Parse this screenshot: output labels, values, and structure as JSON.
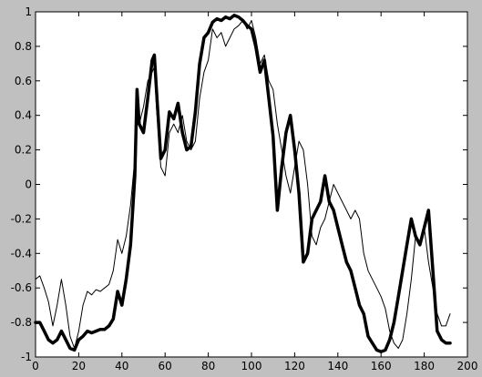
{
  "chart_data": {
    "type": "line",
    "title": "",
    "xlabel": "",
    "ylabel": "",
    "xlim": [
      0,
      200
    ],
    "ylim": [
      -1,
      1
    ],
    "grid": false,
    "xticks": [
      0,
      20,
      40,
      60,
      80,
      100,
      120,
      140,
      160,
      180,
      200
    ],
    "yticks": [
      -1,
      -0.8,
      -0.6,
      -0.4,
      -0.2,
      0,
      0.2,
      0.4,
      0.6,
      0.8,
      1
    ],
    "xtick_labels": [
      "0",
      "20",
      "40",
      "60",
      "80",
      "100",
      "120",
      "140",
      "160",
      "180",
      "200"
    ],
    "ytick_labels": [
      "-1",
      "-0.8",
      "-0.6",
      "-0.4",
      "-0.2",
      "0",
      "0.2",
      "0.4",
      "0.6",
      "0.8",
      "1"
    ],
    "colors": {
      "figure_bg": "#c0c0c0",
      "axes_bg": "#ffffff",
      "line": "#000000"
    },
    "series": [
      {
        "style": "thin",
        "x": [
          0,
          2,
          4,
          6,
          8,
          10,
          12,
          14,
          16,
          18,
          20,
          22,
          24,
          26,
          28,
          30,
          32,
          34,
          36,
          38,
          40,
          42,
          44,
          46,
          47,
          48,
          50,
          52,
          54,
          55,
          56,
          58,
          60,
          62,
          64,
          66,
          68,
          70,
          72,
          74,
          76,
          78,
          80,
          82,
          84,
          86,
          88,
          90,
          92,
          94,
          96,
          98,
          100,
          102,
          104,
          106,
          108,
          110,
          112,
          114,
          116,
          118,
          120,
          122,
          124,
          126,
          128,
          130,
          132,
          134,
          136,
          138,
          140,
          142,
          144,
          146,
          148,
          150,
          152,
          154,
          156,
          158,
          160,
          162,
          164,
          166,
          168,
          170,
          172,
          174,
          176,
          178,
          180,
          182,
          184,
          186,
          188,
          190,
          192
        ],
        "values": [
          -0.55,
          -0.53,
          -0.6,
          -0.68,
          -0.82,
          -0.7,
          -0.55,
          -0.7,
          -0.88,
          -0.95,
          -0.85,
          -0.7,
          -0.62,
          -0.64,
          -0.61,
          -0.62,
          -0.6,
          -0.58,
          -0.5,
          -0.32,
          -0.4,
          -0.3,
          -0.12,
          0.15,
          0.4,
          0.35,
          0.45,
          0.6,
          0.65,
          0.68,
          0.45,
          0.1,
          0.05,
          0.3,
          0.35,
          0.3,
          0.4,
          0.25,
          0.2,
          0.25,
          0.5,
          0.65,
          0.72,
          0.9,
          0.85,
          0.88,
          0.8,
          0.85,
          0.9,
          0.92,
          0.95,
          0.9,
          0.95,
          0.85,
          0.7,
          0.75,
          0.6,
          0.55,
          0.35,
          0.2,
          0.05,
          -0.05,
          0.1,
          0.25,
          0.2,
          0.0,
          -0.3,
          -0.35,
          -0.25,
          -0.2,
          -0.1,
          0.0,
          -0.05,
          -0.1,
          -0.15,
          -0.2,
          -0.15,
          -0.2,
          -0.4,
          -0.5,
          -0.55,
          -0.6,
          -0.65,
          -0.72,
          -0.85,
          -0.92,
          -0.95,
          -0.9,
          -0.75,
          -0.55,
          -0.3,
          -0.35,
          -0.25,
          -0.45,
          -0.6,
          -0.75,
          -0.82,
          -0.82,
          -0.75
        ]
      },
      {
        "style": "thick",
        "x": [
          0,
          2,
          4,
          6,
          8,
          10,
          12,
          14,
          16,
          18,
          20,
          22,
          24,
          26,
          28,
          30,
          32,
          34,
          36,
          38,
          40,
          42,
          44,
          46,
          47,
          48,
          50,
          52,
          54,
          55,
          56,
          58,
          60,
          62,
          64,
          66,
          68,
          70,
          72,
          74,
          76,
          78,
          80,
          82,
          84,
          86,
          88,
          90,
          92,
          94,
          96,
          98,
          100,
          102,
          104,
          106,
          108,
          110,
          112,
          114,
          116,
          118,
          120,
          122,
          124,
          126,
          128,
          130,
          132,
          134,
          136,
          138,
          140,
          142,
          144,
          146,
          148,
          150,
          152,
          154,
          156,
          158,
          160,
          162,
          164,
          166,
          168,
          170,
          172,
          174,
          176,
          178,
          180,
          182,
          184,
          186,
          188,
          190,
          192
        ],
        "values": [
          -0.8,
          -0.8,
          -0.85,
          -0.9,
          -0.92,
          -0.9,
          -0.85,
          -0.9,
          -0.95,
          -0.96,
          -0.9,
          -0.88,
          -0.85,
          -0.86,
          -0.85,
          -0.84,
          -0.84,
          -0.82,
          -0.78,
          -0.62,
          -0.7,
          -0.55,
          -0.35,
          0.05,
          0.55,
          0.35,
          0.3,
          0.5,
          0.72,
          0.75,
          0.55,
          0.15,
          0.2,
          0.42,
          0.38,
          0.47,
          0.3,
          0.2,
          0.22,
          0.42,
          0.7,
          0.85,
          0.88,
          0.94,
          0.96,
          0.95,
          0.97,
          0.96,
          0.98,
          0.97,
          0.95,
          0.92,
          0.9,
          0.8,
          0.65,
          0.72,
          0.5,
          0.28,
          -0.15,
          0.1,
          0.3,
          0.4,
          0.2,
          -0.05,
          -0.45,
          -0.4,
          -0.2,
          -0.15,
          -0.1,
          0.05,
          -0.1,
          -0.15,
          -0.25,
          -0.35,
          -0.45,
          -0.5,
          -0.6,
          -0.7,
          -0.75,
          -0.88,
          -0.92,
          -0.96,
          -0.97,
          -0.96,
          -0.9,
          -0.8,
          -0.65,
          -0.5,
          -0.35,
          -0.2,
          -0.3,
          -0.35,
          -0.25,
          -0.15,
          -0.5,
          -0.85,
          -0.9,
          -0.92,
          -0.92
        ]
      }
    ]
  }
}
